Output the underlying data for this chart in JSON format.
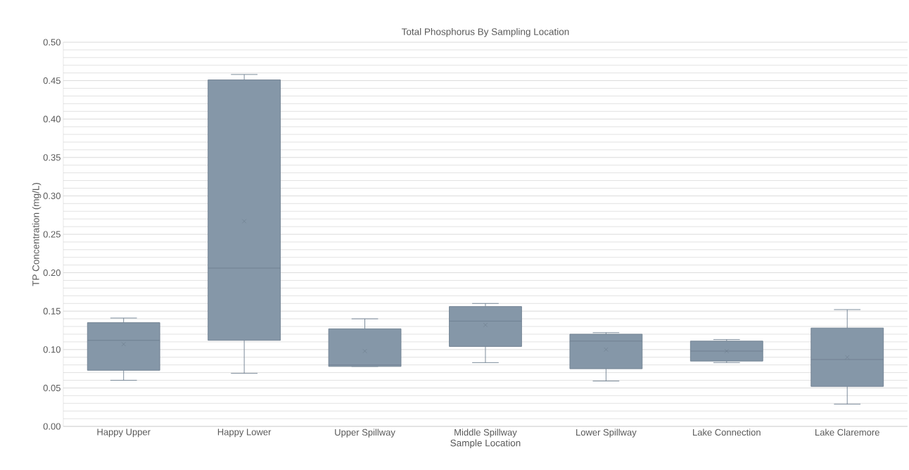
{
  "chart_data": {
    "type": "box",
    "title": "Total Phosphorus By Sampling Location",
    "xlabel": "Sample Location",
    "ylabel": "TP Concentration (mg/L)",
    "categories": [
      "Happy Upper",
      "Happy Lower",
      "Upper Spillway",
      "Middle Spillway",
      "Lower Spillway",
      "Lake Connection",
      "Lake Claremore"
    ],
    "boxes": [
      {
        "low": 0.06,
        "q1": 0.073,
        "median": 0.112,
        "q3": 0.135,
        "high": 0.141,
        "mean": 0.107
      },
      {
        "low": 0.069,
        "q1": 0.112,
        "median": 0.206,
        "q3": 0.451,
        "high": 0.458,
        "mean": 0.267
      },
      {
        "low": 0.078,
        "q1": 0.078,
        "median": 0.08,
        "q3": 0.127,
        "high": 0.14,
        "mean": 0.098
      },
      {
        "low": 0.083,
        "q1": 0.104,
        "median": 0.137,
        "q3": 0.156,
        "high": 0.16,
        "mean": 0.132
      },
      {
        "low": 0.059,
        "q1": 0.075,
        "median": 0.111,
        "q3": 0.12,
        "high": 0.122,
        "mean": 0.1
      },
      {
        "low": 0.083,
        "q1": 0.085,
        "median": 0.098,
        "q3": 0.111,
        "high": 0.113,
        "mean": 0.098
      },
      {
        "low": 0.029,
        "q1": 0.052,
        "median": 0.087,
        "q3": 0.128,
        "high": 0.152,
        "mean": 0.09
      }
    ],
    "color": "#8597a8",
    "ylim": [
      0,
      0.5
    ],
    "yticks": [
      {
        "value": 0,
        "label": "0.00"
      },
      {
        "value": 0.05,
        "label": "0.05"
      },
      {
        "value": 0.1,
        "label": "0.10"
      },
      {
        "value": 0.15,
        "label": "0.15"
      },
      {
        "value": 0.2,
        "label": "0.20"
      },
      {
        "value": 0.25,
        "label": "0.25"
      },
      {
        "value": 0.3,
        "label": "0.30"
      },
      {
        "value": 0.35,
        "label": "0.35"
      },
      {
        "value": 0.4,
        "label": "0.40"
      },
      {
        "value": 0.45,
        "label": "0.45"
      },
      {
        "value": 0.5,
        "label": "0.50"
      }
    ],
    "grid": true,
    "marker": "cross"
  }
}
